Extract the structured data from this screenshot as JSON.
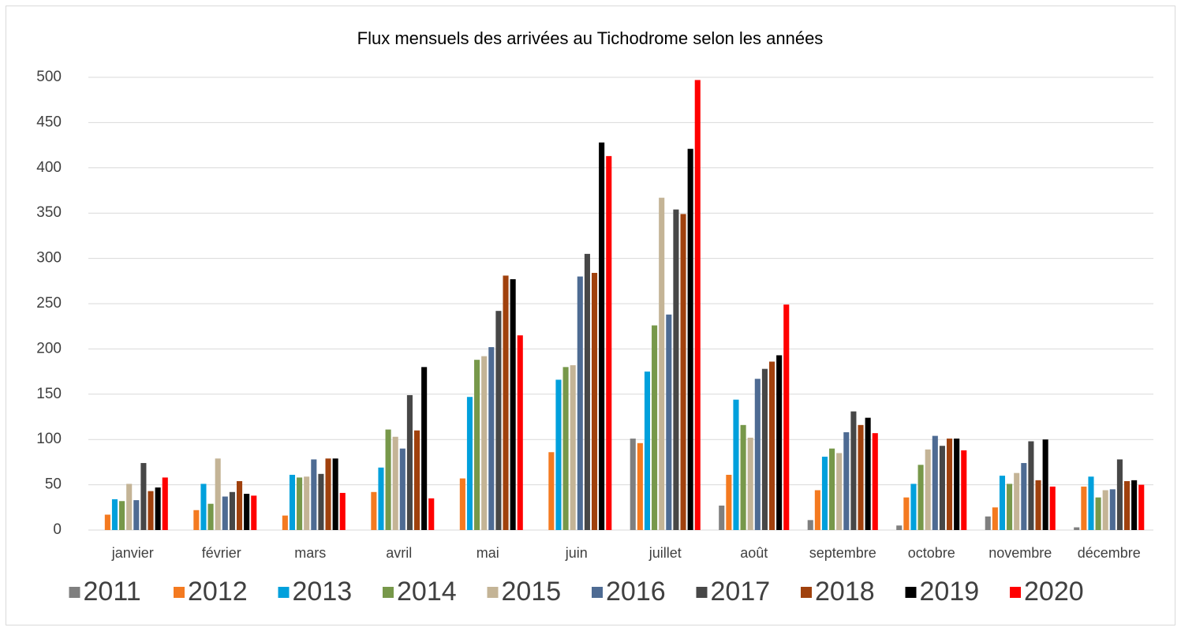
{
  "chart_data": {
    "type": "bar",
    "title": "Flux mensuels des arrivées au Tichodrome selon les années",
    "categories": [
      "janvier",
      "février",
      "mars",
      "avril",
      "mai",
      "juin",
      "juillet",
      "août",
      "septembre",
      "octobre",
      "novembre",
      "décembre"
    ],
    "series": [
      {
        "name": "2011",
        "color": "#7f7f7f",
        "values": [
          0,
          0,
          0,
          0,
          0,
          0,
          101,
          27,
          11,
          5,
          15,
          3
        ]
      },
      {
        "name": "2012",
        "color": "#f47a20",
        "values": [
          17,
          22,
          16,
          42,
          57,
          86,
          96,
          61,
          44,
          36,
          25,
          48
        ]
      },
      {
        "name": "2013",
        "color": "#00a0dc",
        "values": [
          34,
          51,
          61,
          69,
          147,
          166,
          175,
          144,
          81,
          51,
          60,
          59
        ]
      },
      {
        "name": "2014",
        "color": "#77984a",
        "values": [
          32,
          29,
          58,
          111,
          188,
          180,
          226,
          116,
          90,
          72,
          51,
          36
        ]
      },
      {
        "name": "2015",
        "color": "#c4b496",
        "values": [
          51,
          79,
          59,
          103,
          192,
          182,
          367,
          102,
          85,
          89,
          63,
          44
        ]
      },
      {
        "name": "2016",
        "color": "#4e6b93",
        "values": [
          33,
          37,
          78,
          90,
          202,
          280,
          238,
          167,
          108,
          104,
          74,
          45
        ]
      },
      {
        "name": "2017",
        "color": "#474747",
        "values": [
          74,
          42,
          62,
          149,
          242,
          305,
          354,
          178,
          131,
          93,
          98,
          78
        ]
      },
      {
        "name": "2018",
        "color": "#a0410d",
        "values": [
          43,
          54,
          79,
          110,
          281,
          284,
          349,
          186,
          116,
          101,
          55,
          54
        ]
      },
      {
        "name": "2019",
        "color": "#000000",
        "values": [
          47,
          40,
          79,
          180,
          277,
          428,
          421,
          193,
          124,
          101,
          100,
          55
        ]
      },
      {
        "name": "2020",
        "color": "#ff0000",
        "values": [
          58,
          38,
          41,
          35,
          215,
          413,
          497,
          249,
          107,
          88,
          48,
          50
        ]
      }
    ],
    "ylim": [
      0,
      500
    ],
    "yticks": [
      0,
      50,
      100,
      150,
      200,
      250,
      300,
      350,
      400,
      450,
      500
    ],
    "grid": true,
    "legend": "bottom"
  }
}
